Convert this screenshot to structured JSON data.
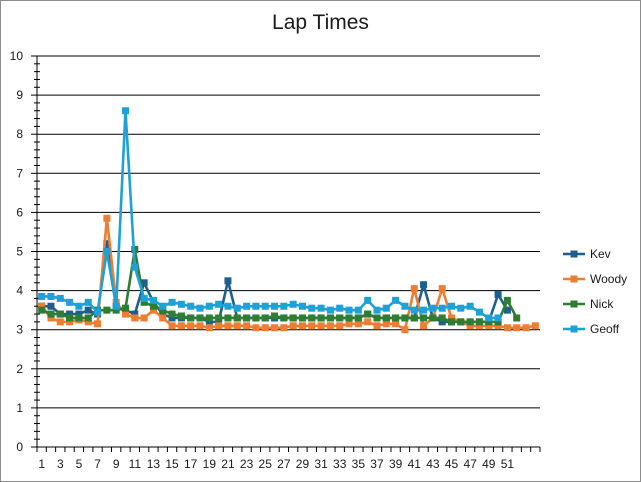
{
  "chart_data": {
    "type": "line",
    "title": "Lap Times",
    "xlabel": "",
    "ylabel": "",
    "ylim": [
      0,
      10
    ],
    "yticks": [
      "0",
      "1",
      "2",
      "3",
      "4",
      "5",
      "6",
      "7",
      "8",
      "9",
      "10"
    ],
    "xlim": [
      1,
      54
    ],
    "xticks": [
      "1",
      "3",
      "5",
      "7",
      "9",
      "11",
      "13",
      "15",
      "17",
      "19",
      "21",
      "23",
      "25",
      "27",
      "29",
      "31",
      "33",
      "35",
      "37",
      "39",
      "41",
      "43",
      "45",
      "47",
      "49",
      "51"
    ],
    "grid": "horizontal",
    "legend_position": "right",
    "series": [
      {
        "name": "Kev",
        "color": "#1f5f8b",
        "x": [
          1,
          2,
          3,
          4,
          5,
          6,
          7,
          8,
          9,
          10,
          11,
          12,
          13,
          14,
          15,
          16,
          17,
          18,
          19,
          20,
          21,
          22,
          23,
          24,
          25,
          26,
          27,
          28,
          29,
          30,
          31,
          32,
          33,
          34,
          35,
          36,
          37,
          38,
          39,
          40,
          41,
          42,
          43,
          44,
          45,
          46,
          47,
          48,
          49,
          50,
          51
        ],
        "values": [
          3.6,
          3.6,
          3.4,
          3.4,
          3.4,
          3.5,
          3.4,
          5.2,
          3.6,
          3.5,
          3.4,
          4.2,
          3.7,
          3.4,
          3.3,
          3.3,
          3.3,
          3.3,
          3.2,
          3.2,
          4.25,
          3.3,
          3.3,
          3.3,
          3.3,
          3.3,
          3.3,
          3.3,
          3.3,
          3.3,
          3.3,
          3.3,
          3.3,
          3.3,
          3.3,
          3.4,
          3.3,
          3.3,
          3.3,
          3.3,
          3.3,
          4.15,
          3.3,
          3.2,
          3.2,
          3.2,
          3.2,
          3.2,
          3.2,
          3.9,
          3.5
        ]
      },
      {
        "name": "Woody",
        "color": "#ed7d31",
        "x": [
          1,
          2,
          3,
          4,
          5,
          6,
          7,
          8,
          9,
          10,
          11,
          12,
          13,
          14,
          15,
          16,
          17,
          18,
          19,
          20,
          21,
          22,
          23,
          24,
          25,
          26,
          27,
          28,
          29,
          30,
          31,
          32,
          33,
          34,
          35,
          36,
          37,
          38,
          39,
          40,
          41,
          42,
          43,
          44,
          45,
          46,
          47,
          48,
          49,
          50,
          51,
          52,
          53,
          54
        ],
        "values": [
          3.6,
          3.3,
          3.2,
          3.2,
          3.25,
          3.2,
          3.15,
          5.85,
          3.7,
          3.4,
          3.3,
          3.3,
          3.5,
          3.3,
          3.1,
          3.1,
          3.1,
          3.1,
          3.05,
          3.1,
          3.1,
          3.1,
          3.1,
          3.05,
          3.05,
          3.05,
          3.05,
          3.1,
          3.1,
          3.1,
          3.1,
          3.1,
          3.1,
          3.15,
          3.15,
          3.2,
          3.1,
          3.15,
          3.15,
          3.0,
          4.05,
          3.1,
          3.3,
          4.05,
          3.3,
          3.2,
          3.1,
          3.1,
          3.1,
          3.1,
          3.05,
          3.05,
          3.05,
          3.1
        ]
      },
      {
        "name": "Nick",
        "color": "#2e7d32",
        "x": [
          1,
          2,
          3,
          4,
          5,
          6,
          7,
          8,
          9,
          10,
          11,
          12,
          13,
          14,
          15,
          16,
          17,
          18,
          19,
          20,
          21,
          22,
          23,
          24,
          25,
          26,
          27,
          28,
          29,
          30,
          31,
          32,
          33,
          34,
          35,
          36,
          37,
          38,
          39,
          40,
          41,
          42,
          43,
          44,
          45,
          46,
          47,
          48,
          49,
          50,
          51,
          52
        ],
        "values": [
          3.5,
          3.4,
          3.4,
          3.3,
          3.3,
          3.3,
          3.5,
          3.5,
          3.5,
          3.55,
          5.05,
          3.7,
          3.6,
          3.5,
          3.4,
          3.35,
          3.3,
          3.3,
          3.3,
          3.3,
          3.3,
          3.3,
          3.3,
          3.3,
          3.3,
          3.35,
          3.3,
          3.3,
          3.3,
          3.3,
          3.3,
          3.3,
          3.3,
          3.3,
          3.3,
          3.4,
          3.3,
          3.3,
          3.3,
          3.3,
          3.3,
          3.3,
          3.3,
          3.3,
          3.2,
          3.2,
          3.2,
          3.2,
          3.2,
          3.2,
          3.75,
          3.3
        ]
      },
      {
        "name": "Geoff",
        "color": "#1da1d6",
        "x": [
          1,
          2,
          3,
          4,
          5,
          6,
          7,
          8,
          9,
          10,
          11,
          12,
          13,
          14,
          15,
          16,
          17,
          18,
          19,
          20,
          21,
          22,
          23,
          24,
          25,
          26,
          27,
          28,
          29,
          30,
          31,
          32,
          33,
          34,
          35,
          36,
          37,
          38,
          39,
          40,
          41,
          42,
          43,
          44,
          45,
          46,
          47,
          48,
          49,
          50
        ],
        "values": [
          3.85,
          3.85,
          3.8,
          3.7,
          3.6,
          3.7,
          3.45,
          5.0,
          3.6,
          8.6,
          4.6,
          3.8,
          3.75,
          3.6,
          3.7,
          3.65,
          3.6,
          3.55,
          3.6,
          3.65,
          3.6,
          3.55,
          3.6,
          3.6,
          3.6,
          3.6,
          3.6,
          3.65,
          3.6,
          3.55,
          3.55,
          3.5,
          3.55,
          3.5,
          3.5,
          3.75,
          3.5,
          3.55,
          3.75,
          3.6,
          3.5,
          3.5,
          3.55,
          3.55,
          3.6,
          3.55,
          3.6,
          3.45,
          3.3,
          3.3
        ]
      }
    ]
  }
}
